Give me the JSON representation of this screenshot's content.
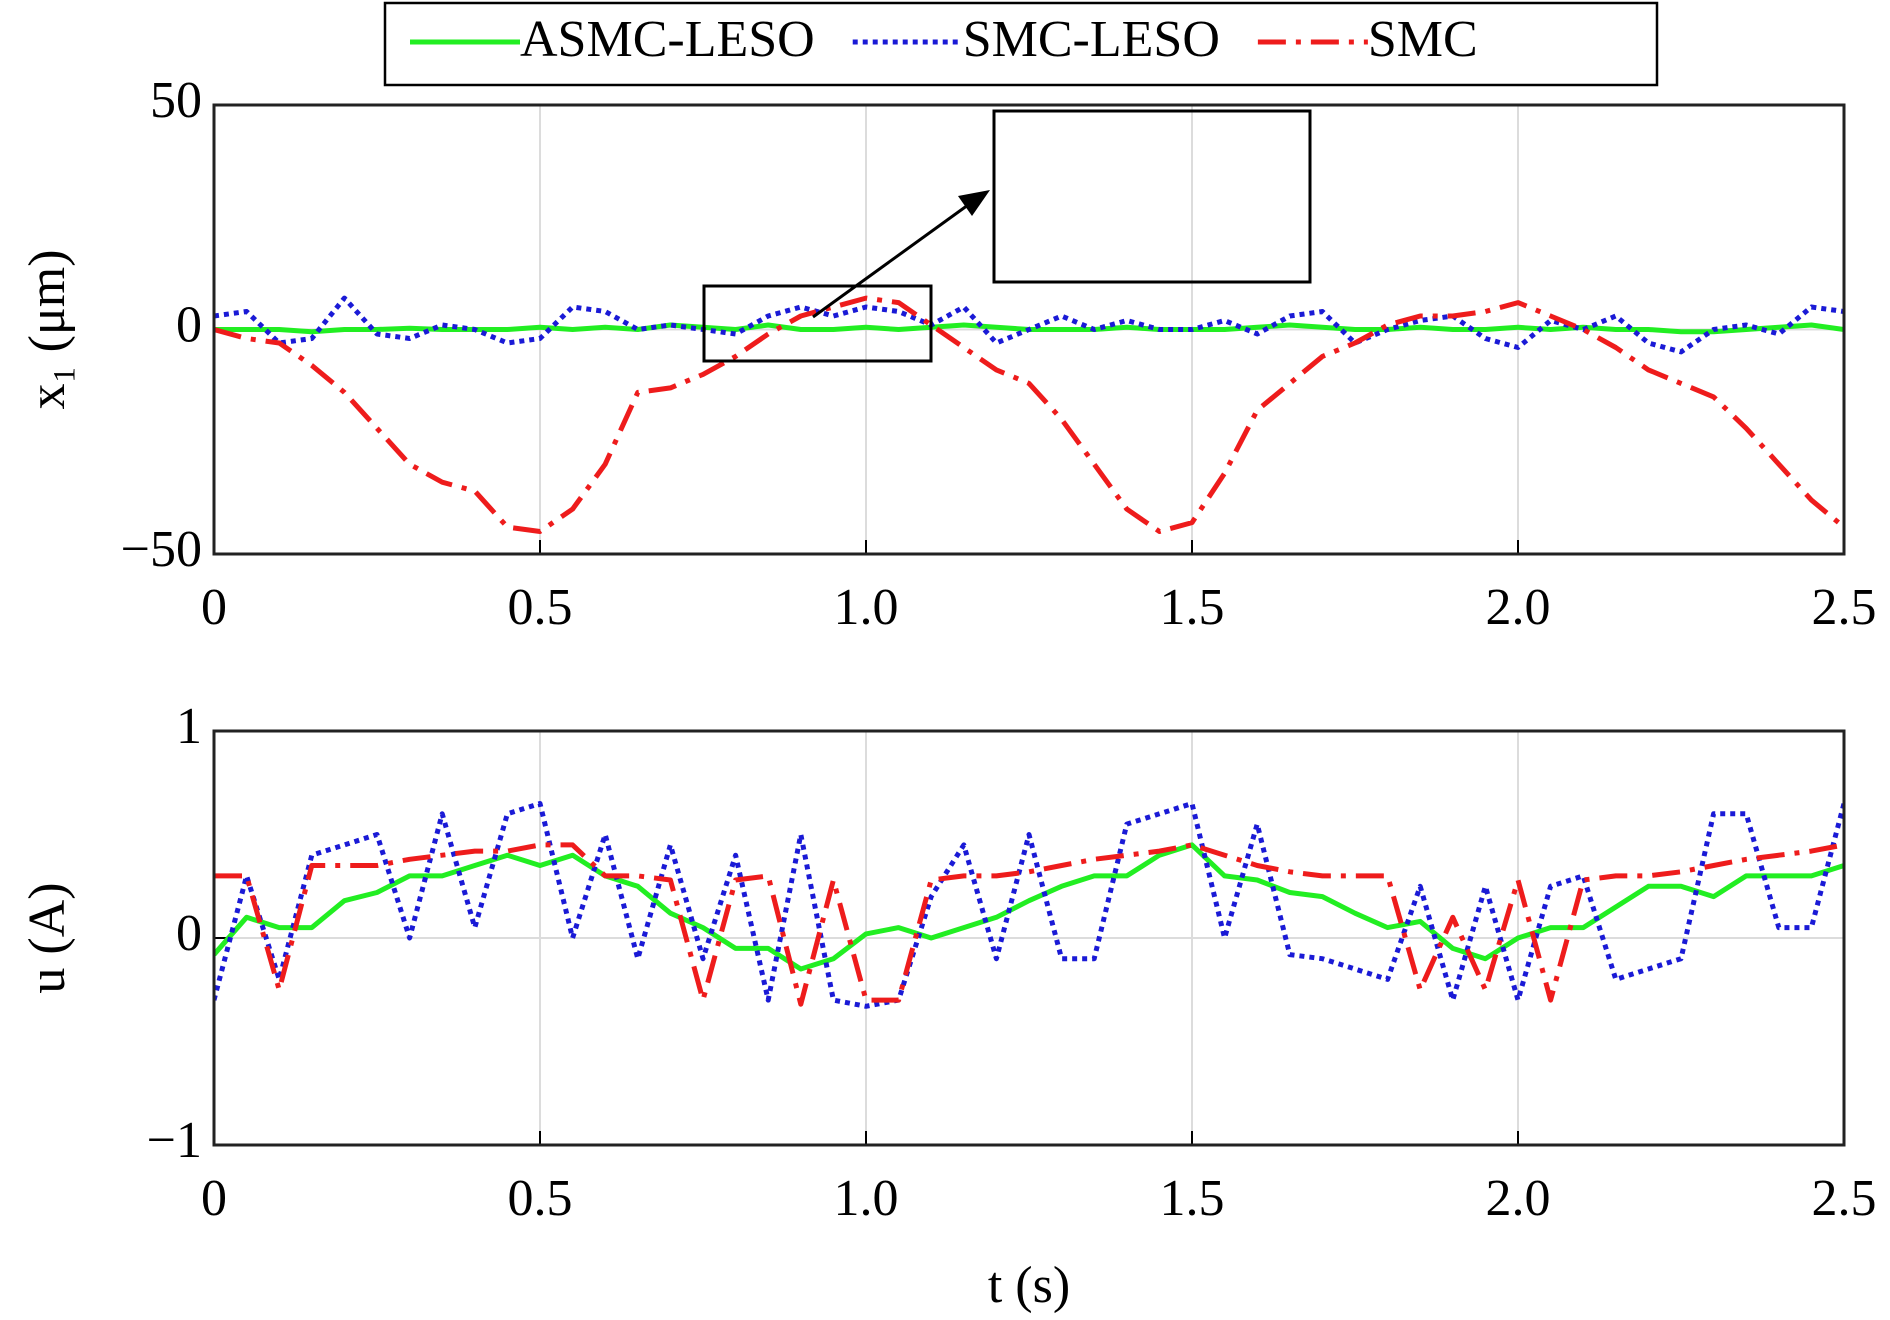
{
  "chart_data": [
    {
      "type": "line",
      "ylabel": "x₁ (μm)",
      "x": [
        0,
        0.05,
        0.1,
        0.15,
        0.2,
        0.25,
        0.3,
        0.35,
        0.4,
        0.45,
        0.5,
        0.55,
        0.6,
        0.65,
        0.7,
        0.75,
        0.8,
        0.85,
        0.9,
        0.95,
        1,
        1.05,
        1.1,
        1.15,
        1.2,
        1.25,
        1.3,
        1.35,
        1.4,
        1.45,
        1.5,
        1.55,
        1.6,
        1.65,
        1.7,
        1.75,
        1.8,
        1.85,
        1.9,
        1.95,
        2,
        2.05,
        2.1,
        2.15,
        2.2,
        2.25,
        2.3,
        2.35,
        2.4,
        2.45,
        2.5
      ],
      "xlim": [
        0,
        2.5
      ],
      "xticks": [
        0,
        0.5,
        {
          "value": 1,
          "label": "1.0"
        },
        1.5,
        {
          "value": 2,
          "label": "2.0"
        },
        2.5
      ],
      "ylim": [
        -50,
        50
      ],
      "yticks": [
        {
          "value": -50,
          "label": "−50"
        },
        0,
        50
      ],
      "grid": true,
      "series": [
        {
          "name": "ASMC-LESO",
          "color": "#22ee22",
          "style": "solid",
          "values": [
            0,
            0,
            0,
            -0.5,
            0,
            0,
            0.3,
            0,
            0,
            0,
            0.5,
            0,
            0.5,
            0,
            1,
            0.5,
            0,
            1,
            0,
            0,
            0.5,
            0,
            0.5,
            1,
            0.5,
            0,
            0,
            0,
            0.5,
            0,
            0,
            0,
            0.5,
            1,
            0.5,
            0,
            0,
            0.5,
            0,
            0,
            0.5,
            0,
            0.5,
            0,
            0,
            -0.5,
            -0.5,
            0,
            0.5,
            1,
            0
          ]
        },
        {
          "name": "SMC-LESO",
          "color": "#1a1ad6",
          "style": "dotted",
          "values": [
            3,
            4,
            -3,
            -2,
            7,
            -1,
            -2,
            1,
            0,
            -3,
            -2,
            5,
            4,
            0,
            1,
            0,
            -1,
            3,
            5,
            3,
            5,
            4,
            1,
            5,
            -3,
            0,
            3,
            0,
            2,
            0,
            0,
            2,
            -1,
            3,
            4,
            -3,
            0,
            2,
            3,
            -2,
            -4,
            2,
            0,
            3,
            -3,
            -5,
            0,
            1,
            -1,
            5,
            4
          ]
        },
        {
          "name": "SMC",
          "color": "#ee1c1c",
          "style": "dashdot",
          "values": [
            0,
            -2,
            -3,
            -8,
            -14,
            -22,
            -30,
            -34,
            -36,
            -44,
            -45,
            -40,
            -30,
            -14,
            -13,
            -10,
            -6,
            -1,
            3,
            5,
            7,
            6,
            1,
            -4,
            -9,
            -12,
            -20,
            -30,
            -40,
            -45,
            -43,
            -32,
            -18,
            -12,
            -6,
            -3,
            1,
            3,
            3,
            4,
            6,
            3,
            0,
            -4,
            -9,
            -12,
            -15,
            -22,
            -30,
            -38,
            -44
          ]
        }
      ]
    },
    {
      "type": "line",
      "ylabel": "u (A)",
      "xlabel": "t (s)",
      "x": [
        0,
        0.05,
        0.1,
        0.15,
        0.2,
        0.25,
        0.3,
        0.35,
        0.4,
        0.45,
        0.5,
        0.55,
        0.6,
        0.65,
        0.7,
        0.75,
        0.8,
        0.85,
        0.9,
        0.95,
        1,
        1.05,
        1.1,
        1.15,
        1.2,
        1.25,
        1.3,
        1.35,
        1.4,
        1.45,
        1.5,
        1.55,
        1.6,
        1.65,
        1.7,
        1.75,
        1.8,
        1.85,
        1.9,
        1.95,
        2,
        2.05,
        2.1,
        2.15,
        2.2,
        2.25,
        2.3,
        2.35,
        2.4,
        2.45,
        2.5
      ],
      "xlim": [
        0,
        2.5
      ],
      "xticks": [
        0,
        0.5,
        {
          "value": 1,
          "label": "1.0"
        },
        1.5,
        {
          "value": 2,
          "label": "2.0"
        },
        2.5
      ],
      "ylim": [
        -1,
        1
      ],
      "yticks": [
        {
          "value": -1,
          "label": "−1"
        },
        0,
        1
      ],
      "grid": true,
      "series": [
        {
          "color": "#22ee22",
          "style": "solid",
          "values": [
            -0.08,
            0.1,
            0.05,
            0.05,
            0.18,
            0.22,
            0.3,
            0.3,
            0.35,
            0.4,
            0.35,
            0.4,
            0.3,
            0.25,
            0.12,
            0.05,
            -0.05,
            -0.05,
            -0.15,
            -0.1,
            0.02,
            0.05,
            0,
            0.05,
            0.1,
            0.18,
            0.25,
            0.3,
            0.3,
            0.4,
            0.45,
            0.3,
            0.28,
            0.22,
            0.2,
            0.12,
            0.05,
            0.08,
            -0.05,
            -0.1,
            0,
            0.05,
            0.05,
            0.15,
            0.25,
            0.25,
            0.2,
            0.3,
            0.3,
            0.3,
            0.35
          ]
        },
        {
          "color": "#1a1ad6",
          "style": "dotted",
          "values": [
            -0.3,
            0.3,
            -0.2,
            0.4,
            0.45,
            0.5,
            0,
            0.6,
            0.05,
            0.6,
            0.65,
            0,
            0.5,
            -0.1,
            0.45,
            -0.1,
            0.4,
            -0.3,
            0.5,
            -0.3,
            -0.33,
            -0.3,
            0.2,
            0.45,
            -0.1,
            0.5,
            -0.1,
            -0.1,
            0.55,
            0.6,
            0.65,
            0,
            0.55,
            -0.08,
            -0.1,
            -0.15,
            -0.2,
            0.25,
            -0.3,
            0.25,
            -0.3,
            0.25,
            0.3,
            -0.2,
            -0.15,
            -0.1,
            0.6,
            0.6,
            0.05,
            0.05,
            0.65
          ]
        },
        {
          "color": "#ee1c1c",
          "style": "dashdot",
          "values": [
            0.3,
            0.3,
            -0.25,
            0.35,
            0.35,
            0.35,
            0.38,
            0.4,
            0.42,
            0.42,
            0.45,
            0.45,
            0.3,
            0.3,
            0.28,
            -0.3,
            0.28,
            0.3,
            -0.32,
            0.28,
            -0.3,
            -0.3,
            0.28,
            0.3,
            0.3,
            0.32,
            0.35,
            0.38,
            0.4,
            0.42,
            0.45,
            0.4,
            0.35,
            0.32,
            0.3,
            0.3,
            0.3,
            -0.25,
            0.1,
            -0.25,
            0.28,
            -0.3,
            0.28,
            0.3,
            0.3,
            0.32,
            0.35,
            0.38,
            0.4,
            0.42,
            0.45
          ]
        }
      ]
    }
  ]
}
